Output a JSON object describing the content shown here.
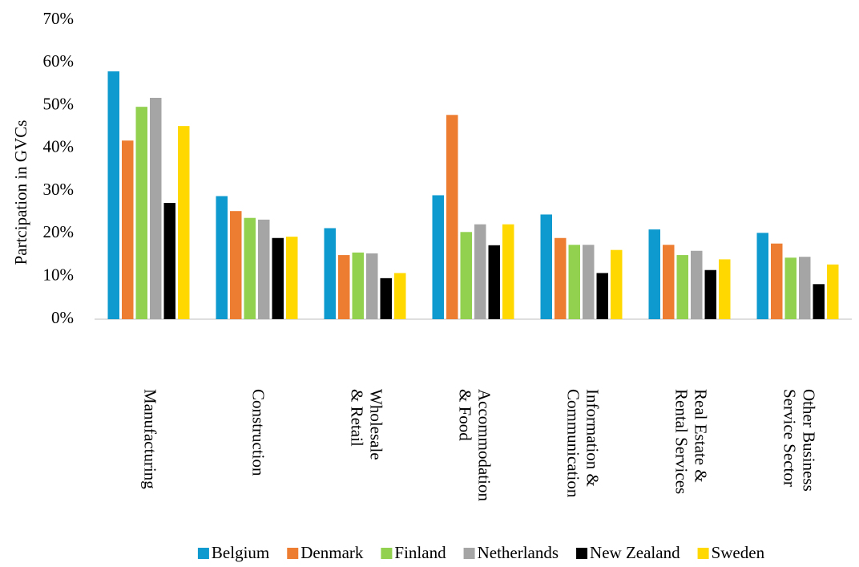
{
  "chart_data": {
    "type": "bar",
    "y_label": "Partcipation in GVCs",
    "categories": [
      [
        "Manufacturing"
      ],
      [
        "Construction"
      ],
      [
        "Wholesale",
        "& Retail"
      ],
      [
        "Accommodation",
        "& Food"
      ],
      [
        "Information &",
        "Communication"
      ],
      [
        "Real Estate &",
        "Rental Services"
      ],
      [
        "Other Business",
        "Service Sector"
      ]
    ],
    "series": [
      {
        "name": "Belgium",
        "color": "#0E9ACF",
        "values": [
          58.0,
          28.8,
          21.3,
          29.0,
          24.5,
          21.0,
          20.2
        ]
      },
      {
        "name": "Denmark",
        "color": "#ED7D31",
        "values": [
          41.8,
          25.3,
          15.0,
          47.8,
          19.0,
          17.4,
          17.7
        ]
      },
      {
        "name": "Finland",
        "color": "#92D050",
        "values": [
          49.7,
          23.7,
          15.6,
          20.4,
          17.4,
          15.0,
          14.4
        ]
      },
      {
        "name": "Netherlands",
        "color": "#A5A5A5",
        "values": [
          51.8,
          23.3,
          15.4,
          22.2,
          17.4,
          16.0,
          14.6
        ]
      },
      {
        "name": "New Zealand",
        "color": "#000000",
        "values": [
          27.2,
          19.0,
          9.6,
          17.3,
          10.8,
          11.5,
          8.2
        ]
      },
      {
        "name": "Sweden",
        "color": "#FFD800",
        "values": [
          45.2,
          19.3,
          10.8,
          22.2,
          16.2,
          14.0,
          12.8
        ]
      }
    ],
    "ylim": [
      0,
      70
    ],
    "yticks": [
      {
        "value": 0,
        "label": "0%"
      },
      {
        "value": 10,
        "label": "10%"
      },
      {
        "value": 20,
        "label": "20%"
      },
      {
        "value": 30,
        "label": "30%"
      },
      {
        "value": 40,
        "label": "40%"
      },
      {
        "value": 50,
        "label": "50%"
      },
      {
        "value": 60,
        "label": "60%"
      },
      {
        "value": 70,
        "label": "70%"
      }
    ],
    "grid": false,
    "legend": "bottom"
  }
}
